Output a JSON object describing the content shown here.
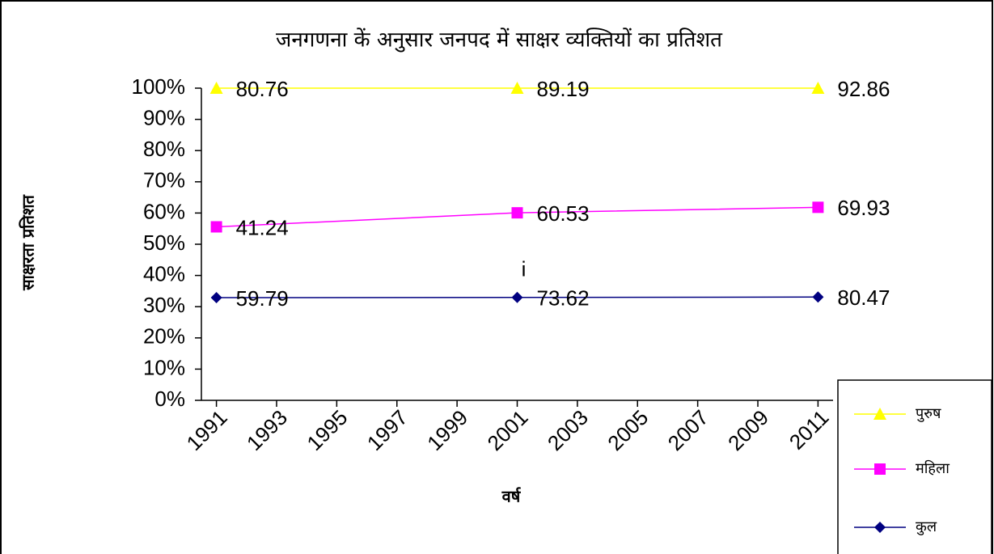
{
  "chart_data": {
    "type": "line",
    "stacked": "percent",
    "title": "जनगणना कें अनुसार जनपद में साक्षर व्यक्तियों का प्रतिशत",
    "x_label": "वर्ष",
    "y_label": "साक्षरता प्रतिशत",
    "x": [
      1991,
      2001,
      2011
    ],
    "xlim": [
      1990.5,
      2011.5
    ],
    "xticks": [
      1991,
      1993,
      1995,
      1997,
      1999,
      2001,
      2003,
      2005,
      2007,
      2009,
      2011
    ],
    "ylim": [
      0,
      100
    ],
    "yticks": [
      {
        "value": 0,
        "label": "0%"
      },
      {
        "value": 10,
        "label": "10%"
      },
      {
        "value": 20,
        "label": "20%"
      },
      {
        "value": 30,
        "label": "30%"
      },
      {
        "value": 40,
        "label": "40%"
      },
      {
        "value": 50,
        "label": "50%"
      },
      {
        "value": 60,
        "label": "60%"
      },
      {
        "value": 70,
        "label": "70%"
      },
      {
        "value": 80,
        "label": "80%"
      },
      {
        "value": 90,
        "label": "90%"
      },
      {
        "value": 100,
        "label": "100%"
      }
    ],
    "grid": false,
    "legend": "bottom-right",
    "series": [
      {
        "name": "पुरुष",
        "color": "#ffff00",
        "marker": "triangle",
        "values": [
          80.76,
          89.19,
          92.86
        ]
      },
      {
        "name": "महिला",
        "color": "#ff00ff",
        "marker": "square",
        "values": [
          41.24,
          60.53,
          69.93
        ]
      },
      {
        "name": "कुल",
        "color": "#000080",
        "marker": "diamond",
        "values": [
          59.79,
          73.62,
          80.47
        ]
      }
    ],
    "annotations": [
      {
        "text": "i",
        "x": 2001,
        "y": 40
      }
    ]
  }
}
